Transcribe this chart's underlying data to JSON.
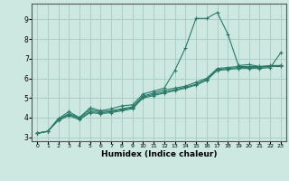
{
  "title": "",
  "xlabel": "Humidex (Indice chaleur)",
  "background_color": "#cce8e0",
  "grid_color": "#aacfc8",
  "line_color": "#2a7a6a",
  "xlim": [
    -0.5,
    23.5
  ],
  "ylim": [
    2.8,
    9.8
  ],
  "xticks": [
    0,
    1,
    2,
    3,
    4,
    5,
    6,
    7,
    8,
    9,
    10,
    11,
    12,
    13,
    14,
    15,
    16,
    17,
    18,
    19,
    20,
    21,
    22,
    23
  ],
  "yticks": [
    3,
    4,
    5,
    6,
    7,
    8,
    9
  ],
  "series": [
    {
      "x": [
        0,
        1,
        2,
        3,
        4,
        5,
        6,
        7,
        8,
        9,
        10,
        11,
        12,
        13,
        14,
        15,
        16,
        17,
        18,
        19,
        20,
        21,
        22,
        23
      ],
      "y": [
        3.2,
        3.3,
        3.95,
        4.3,
        4.0,
        4.5,
        4.35,
        4.45,
        4.6,
        4.65,
        5.2,
        5.35,
        5.5,
        6.4,
        7.55,
        9.05,
        9.05,
        9.35,
        8.25,
        6.65,
        6.7,
        6.6,
        6.65,
        6.65
      ]
    },
    {
      "x": [
        0,
        1,
        2,
        3,
        4,
        5,
        6,
        7,
        8,
        9,
        10,
        11,
        12,
        13,
        14,
        15,
        16,
        17,
        18,
        19,
        20,
        21,
        22,
        23
      ],
      "y": [
        3.2,
        3.3,
        3.9,
        4.2,
        4.0,
        4.4,
        4.3,
        4.35,
        4.45,
        4.55,
        5.1,
        5.25,
        5.4,
        5.5,
        5.6,
        5.8,
        6.0,
        6.5,
        6.55,
        6.6,
        6.6,
        6.6,
        6.6,
        6.65
      ]
    },
    {
      "x": [
        0,
        1,
        2,
        3,
        4,
        5,
        6,
        7,
        8,
        9,
        10,
        11,
        12,
        13,
        14,
        15,
        16,
        17,
        18,
        19,
        20,
        21,
        22,
        23
      ],
      "y": [
        3.2,
        3.3,
        3.9,
        4.15,
        3.95,
        4.3,
        4.25,
        4.3,
        4.4,
        4.5,
        5.05,
        5.18,
        5.3,
        5.42,
        5.55,
        5.7,
        5.95,
        6.45,
        6.5,
        6.55,
        6.55,
        6.55,
        6.6,
        6.6
      ]
    },
    {
      "x": [
        0,
        1,
        2,
        3,
        4,
        5,
        6,
        7,
        8,
        9,
        10,
        11,
        12,
        13,
        14,
        15,
        16,
        17,
        18,
        19,
        20,
        21,
        22,
        23
      ],
      "y": [
        3.2,
        3.3,
        3.85,
        4.1,
        3.9,
        4.25,
        4.2,
        4.25,
        4.35,
        4.45,
        5.0,
        5.12,
        5.25,
        5.37,
        5.5,
        5.65,
        5.9,
        6.4,
        6.45,
        6.5,
        6.5,
        6.5,
        6.55,
        7.3
      ]
    }
  ]
}
